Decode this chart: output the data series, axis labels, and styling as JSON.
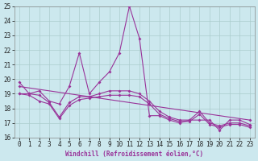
{
  "bg_color": "#cce8ee",
  "grid_color": "#aacccc",
  "line_color": "#993399",
  "xlim": [
    -0.5,
    23.5
  ],
  "ylim": [
    16,
    25
  ],
  "yticks": [
    16,
    17,
    18,
    19,
    20,
    21,
    22,
    23,
    24,
    25
  ],
  "xticks": [
    0,
    1,
    2,
    3,
    4,
    5,
    6,
    7,
    8,
    9,
    10,
    11,
    12,
    13,
    14,
    15,
    16,
    17,
    18,
    19,
    20,
    21,
    22,
    23
  ],
  "xlabel": "Windchill (Refroidissement éolien,°C)",
  "line1_y": [
    19.8,
    19.0,
    19.2,
    18.5,
    18.3,
    19.5,
    21.8,
    19.0,
    19.8,
    20.5,
    21.8,
    25.0,
    22.8,
    17.5,
    17.5,
    17.2,
    17.0,
    17.2,
    17.2,
    17.2,
    16.5,
    17.2,
    17.2,
    16.9
  ],
  "line2_y": [
    19.0,
    19.0,
    18.9,
    18.4,
    17.4,
    18.4,
    18.8,
    18.8,
    19.0,
    19.2,
    19.2,
    19.2,
    19.0,
    18.5,
    17.8,
    17.4,
    17.2,
    17.2,
    17.8,
    17.0,
    16.8,
    17.0,
    17.0,
    16.8
  ],
  "line3_y": [
    19.0,
    18.9,
    18.5,
    18.3,
    17.3,
    18.2,
    18.6,
    18.7,
    18.8,
    18.9,
    18.9,
    18.9,
    18.8,
    18.3,
    17.6,
    17.3,
    17.1,
    17.1,
    17.6,
    16.9,
    16.7,
    16.9,
    16.9,
    16.7
  ],
  "line4_x": [
    0,
    23
  ],
  "line4_y": [
    19.5,
    17.2
  ],
  "markersize": 2.0,
  "linewidth": 0.8,
  "font_size": 5.5
}
